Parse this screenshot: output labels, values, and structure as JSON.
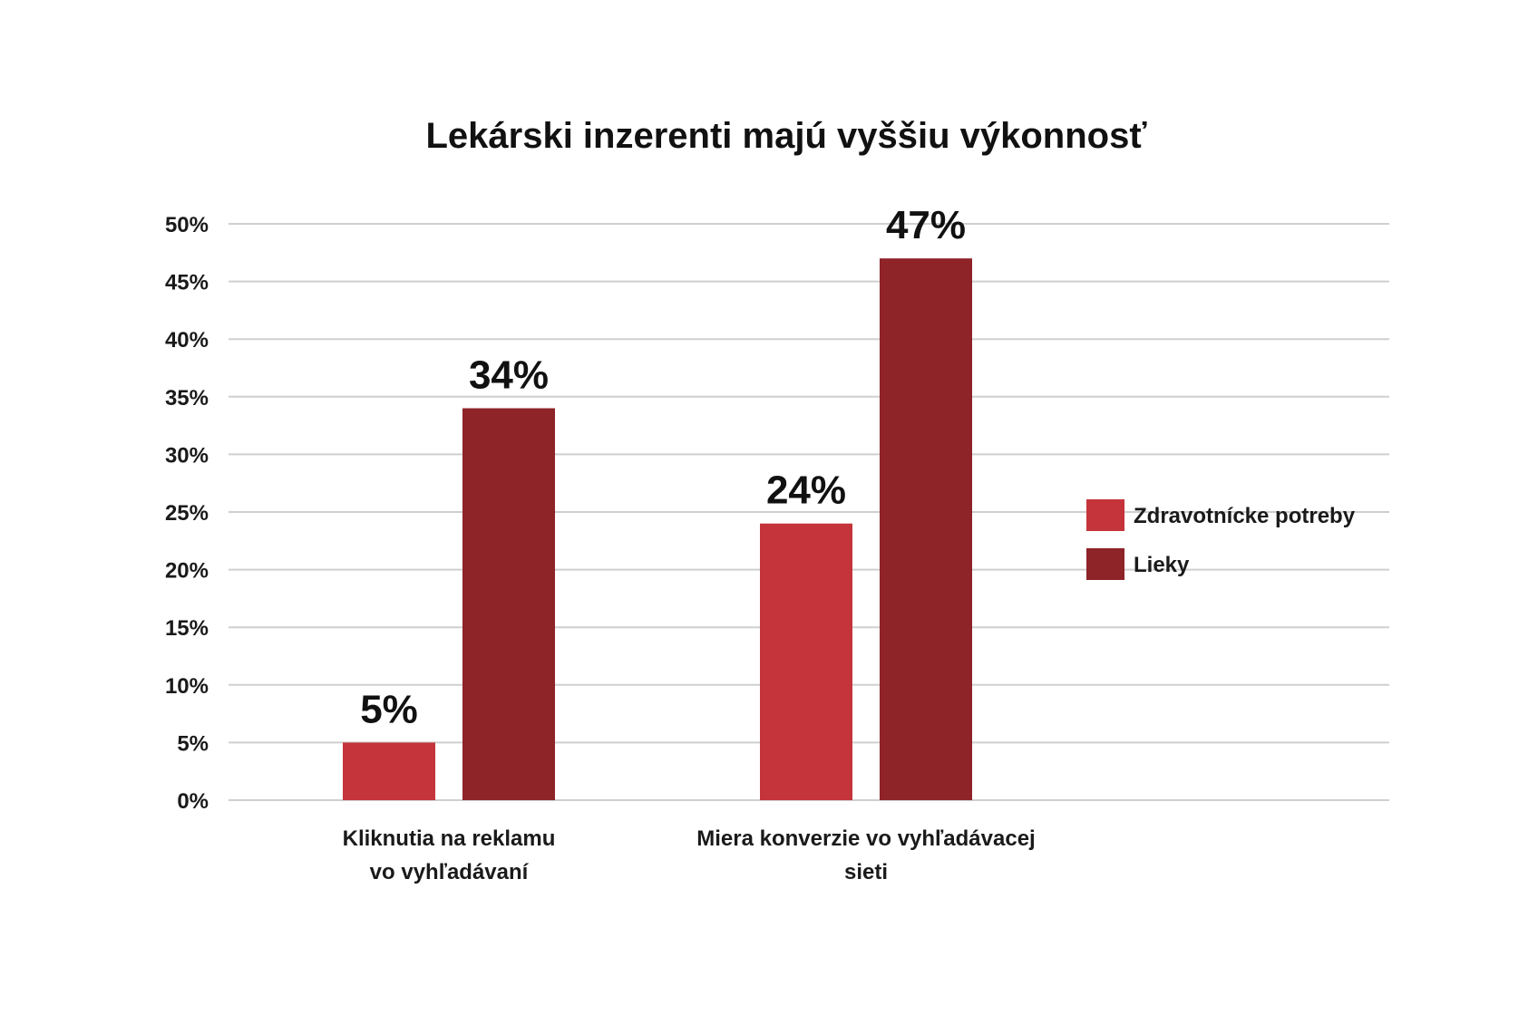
{
  "chart_data": {
    "type": "bar",
    "title": "Lekárski inzerenti majú vyššiu výkonnosť",
    "categories": [
      "Kliknutia na reklamu\nvo vyhľadávaní",
      "Miera konverzie vo vyhľadávacej\nsieti"
    ],
    "series": [
      {
        "name": "Zdravotnícke potreby",
        "color": "#C4343A",
        "values": [
          5,
          24
        ],
        "labels": [
          "5%",
          "24%"
        ]
      },
      {
        "name": "Lieky",
        "color": "#8E2328",
        "values": [
          34,
          47
        ],
        "labels": [
          "34%",
          "47%"
        ]
      }
    ],
    "ylim": [
      0,
      50
    ],
    "y_ticks": [
      {
        "value": 0,
        "label": "0%"
      },
      {
        "value": 5,
        "label": "5%"
      },
      {
        "value": 10,
        "label": "10%"
      },
      {
        "value": 15,
        "label": "15%"
      },
      {
        "value": 20,
        "label": "20%"
      },
      {
        "value": 25,
        "label": "25%"
      },
      {
        "value": 30,
        "label": "30%"
      },
      {
        "value": 35,
        "label": "35%"
      },
      {
        "value": 40,
        "label": "40%"
      },
      {
        "value": 45,
        "label": "45%"
      },
      {
        "value": 50,
        "label": "50%"
      }
    ],
    "xlabel": "",
    "ylabel": "",
    "grid": true,
    "legend_position": "right"
  }
}
